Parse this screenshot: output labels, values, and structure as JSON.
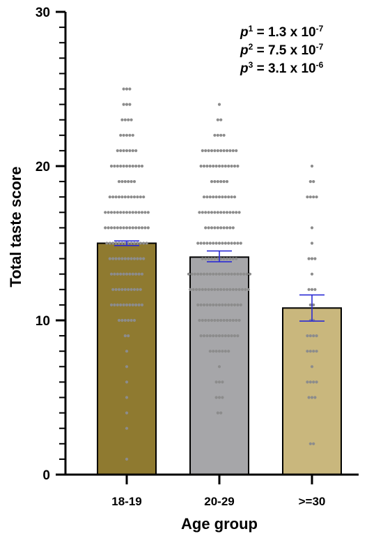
{
  "chart_data": {
    "type": "bar",
    "title": "",
    "xlabel": "Age group",
    "ylabel": "Total taste score",
    "ylim": [
      0,
      30
    ],
    "yticks": [
      "0",
      "10",
      "20",
      "30"
    ],
    "categories": [
      "18-19",
      "20-29",
      ">=30"
    ],
    "values": [
      15.0,
      14.1,
      10.8
    ],
    "error_bars": [
      {
        "low": 14.85,
        "high": 15.15
      },
      {
        "low": 13.8,
        "high": 14.5
      },
      {
        "low": 9.95,
        "high": 11.65
      }
    ],
    "bar_colors": [
      "#8f7a30",
      "#a6a6a9",
      "#c9b77d"
    ],
    "error_bar_color": "#2a2ad4",
    "dot_color": "#8c8c8c",
    "points": [
      {
        "y": [
          1,
          3,
          4,
          5,
          6,
          7,
          8,
          9,
          9,
          10,
          10,
          10,
          10,
          10,
          10,
          11,
          11,
          11,
          11,
          11,
          11,
          11,
          11,
          11,
          11,
          11,
          12,
          12,
          12,
          12,
          12,
          12,
          12,
          12,
          12,
          12,
          13,
          13,
          13,
          13,
          13,
          13,
          13,
          13,
          13,
          13,
          13,
          14,
          14,
          14,
          14,
          14,
          14,
          14,
          14,
          14,
          14,
          14,
          14,
          15,
          15,
          15,
          15,
          15,
          15,
          15,
          15,
          15,
          15,
          15,
          15,
          15,
          15,
          16,
          16,
          16,
          16,
          16,
          16,
          16,
          16,
          16,
          16,
          16,
          16,
          16,
          16,
          16,
          17,
          17,
          17,
          17,
          17,
          17,
          17,
          17,
          17,
          17,
          17,
          17,
          17,
          17,
          17,
          18,
          18,
          18,
          18,
          18,
          18,
          18,
          18,
          18,
          18,
          18,
          18,
          19,
          19,
          19,
          19,
          19,
          19,
          20,
          20,
          20,
          20,
          20,
          20,
          20,
          20,
          20,
          20,
          20,
          21,
          21,
          21,
          21,
          21,
          21,
          21,
          22,
          22,
          22,
          22,
          22,
          23,
          23,
          23,
          23,
          24,
          24,
          24,
          25,
          25,
          25
        ]
      },
      {
        "y": [
          4,
          4,
          5,
          5,
          5,
          6,
          6,
          6,
          7,
          8,
          8,
          8,
          8,
          8,
          8,
          8,
          9,
          9,
          9,
          9,
          9,
          9,
          9,
          9,
          9,
          9,
          9,
          9,
          9,
          10,
          10,
          10,
          10,
          10,
          10,
          10,
          10,
          10,
          10,
          10,
          10,
          10,
          10,
          11,
          11,
          11,
          11,
          11,
          11,
          11,
          11,
          11,
          11,
          11,
          11,
          11,
          11,
          11,
          12,
          12,
          12,
          12,
          12,
          12,
          12,
          12,
          12,
          12,
          12,
          12,
          12,
          12,
          12,
          12,
          12,
          12,
          12,
          12,
          13,
          13,
          13,
          13,
          13,
          13,
          13,
          13,
          13,
          13,
          13,
          13,
          13,
          13,
          13,
          13,
          13,
          13,
          13,
          13,
          13,
          14,
          14,
          14,
          14,
          14,
          14,
          14,
          14,
          14,
          14,
          14,
          14,
          15,
          15,
          15,
          15,
          15,
          15,
          15,
          15,
          15,
          15,
          15,
          15,
          15,
          15,
          15,
          16,
          16,
          16,
          16,
          16,
          16,
          16,
          16,
          16,
          16,
          17,
          17,
          17,
          17,
          17,
          17,
          17,
          17,
          17,
          17,
          17,
          17,
          17,
          17,
          18,
          18,
          18,
          18,
          18,
          18,
          18,
          18,
          18,
          18,
          18,
          19,
          19,
          19,
          19,
          19,
          19,
          20,
          20,
          20,
          20,
          20,
          20,
          20,
          20,
          20,
          20,
          20,
          20,
          20,
          21,
          21,
          21,
          21,
          21,
          21,
          21,
          21,
          21,
          21,
          21,
          21,
          22,
          22,
          22,
          22,
          23,
          23,
          24
        ]
      },
      {
        "y": [
          2,
          2,
          5,
          5,
          5,
          6,
          6,
          6,
          6,
          7,
          8,
          8,
          8,
          8,
          9,
          9,
          9,
          9,
          10,
          10,
          11,
          11,
          12,
          12,
          12,
          13,
          14,
          14,
          14,
          15,
          16,
          18,
          18,
          18,
          18,
          19,
          19,
          20
        ]
      }
    ],
    "annotations": [
      {
        "label": "p",
        "sup": "1",
        "text": " = 1.3 x 10",
        "exp": "-7"
      },
      {
        "label": "p",
        "sup": "2",
        "text": " = 7.5 x 10",
        "exp": "-7"
      },
      {
        "label": "p",
        "sup": "3",
        "text": " = 3.1 x 10",
        "exp": "-6"
      }
    ]
  }
}
